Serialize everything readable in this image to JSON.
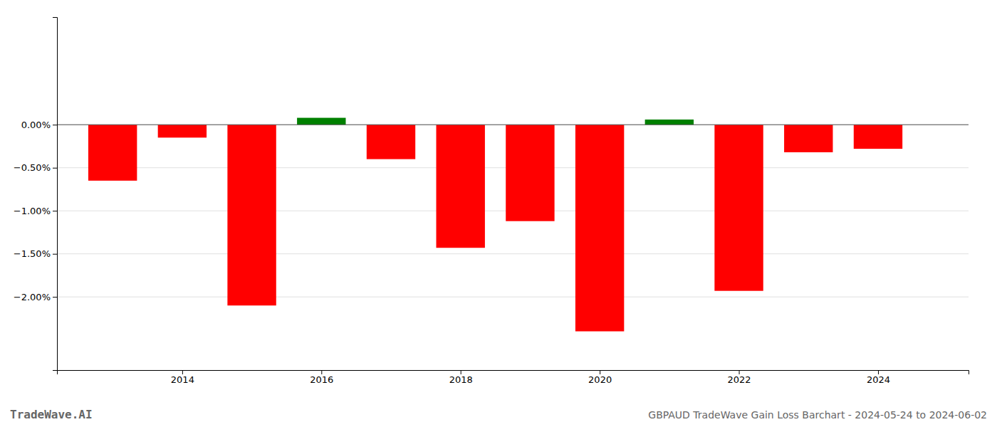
{
  "chart_data": {
    "type": "bar",
    "x": [
      2013,
      2014,
      2015,
      2016,
      2017,
      2018,
      2019,
      2020,
      2021,
      2022,
      2023,
      2024
    ],
    "values": [
      -0.0065,
      -0.0015,
      -0.021,
      0.0008,
      -0.004,
      -0.0143,
      -0.0112,
      -0.024,
      0.0006,
      -0.0193,
      -0.0032,
      -0.0028
    ],
    "colors": [
      "#ff0000",
      "#ff0000",
      "#ff0000",
      "#008000",
      "#ff0000",
      "#ff0000",
      "#ff0000",
      "#ff0000",
      "#008000",
      "#ff0000",
      "#ff0000",
      "#ff0000"
    ],
    "xlim": [
      2012.2,
      2025.3
    ],
    "xticks": [
      2014,
      2016,
      2018,
      2020,
      2022,
      2024
    ],
    "ylim": [
      -0.0285,
      0.0125
    ],
    "yticks": [
      {
        "value": 0.0,
        "label": "0.00%"
      },
      {
        "value": -0.005,
        "label": "−0.50%"
      },
      {
        "value": -0.01,
        "label": "−1.00%"
      },
      {
        "value": -0.015,
        "label": "−1.50%"
      },
      {
        "value": -0.02,
        "label": "−2.00%"
      }
    ],
    "grid": true,
    "annotations": [
      "TradeWave.AI",
      "GBPAUD TradeWave Gain Loss Barchart - 2024-05-24 to 2024-06-02"
    ]
  }
}
